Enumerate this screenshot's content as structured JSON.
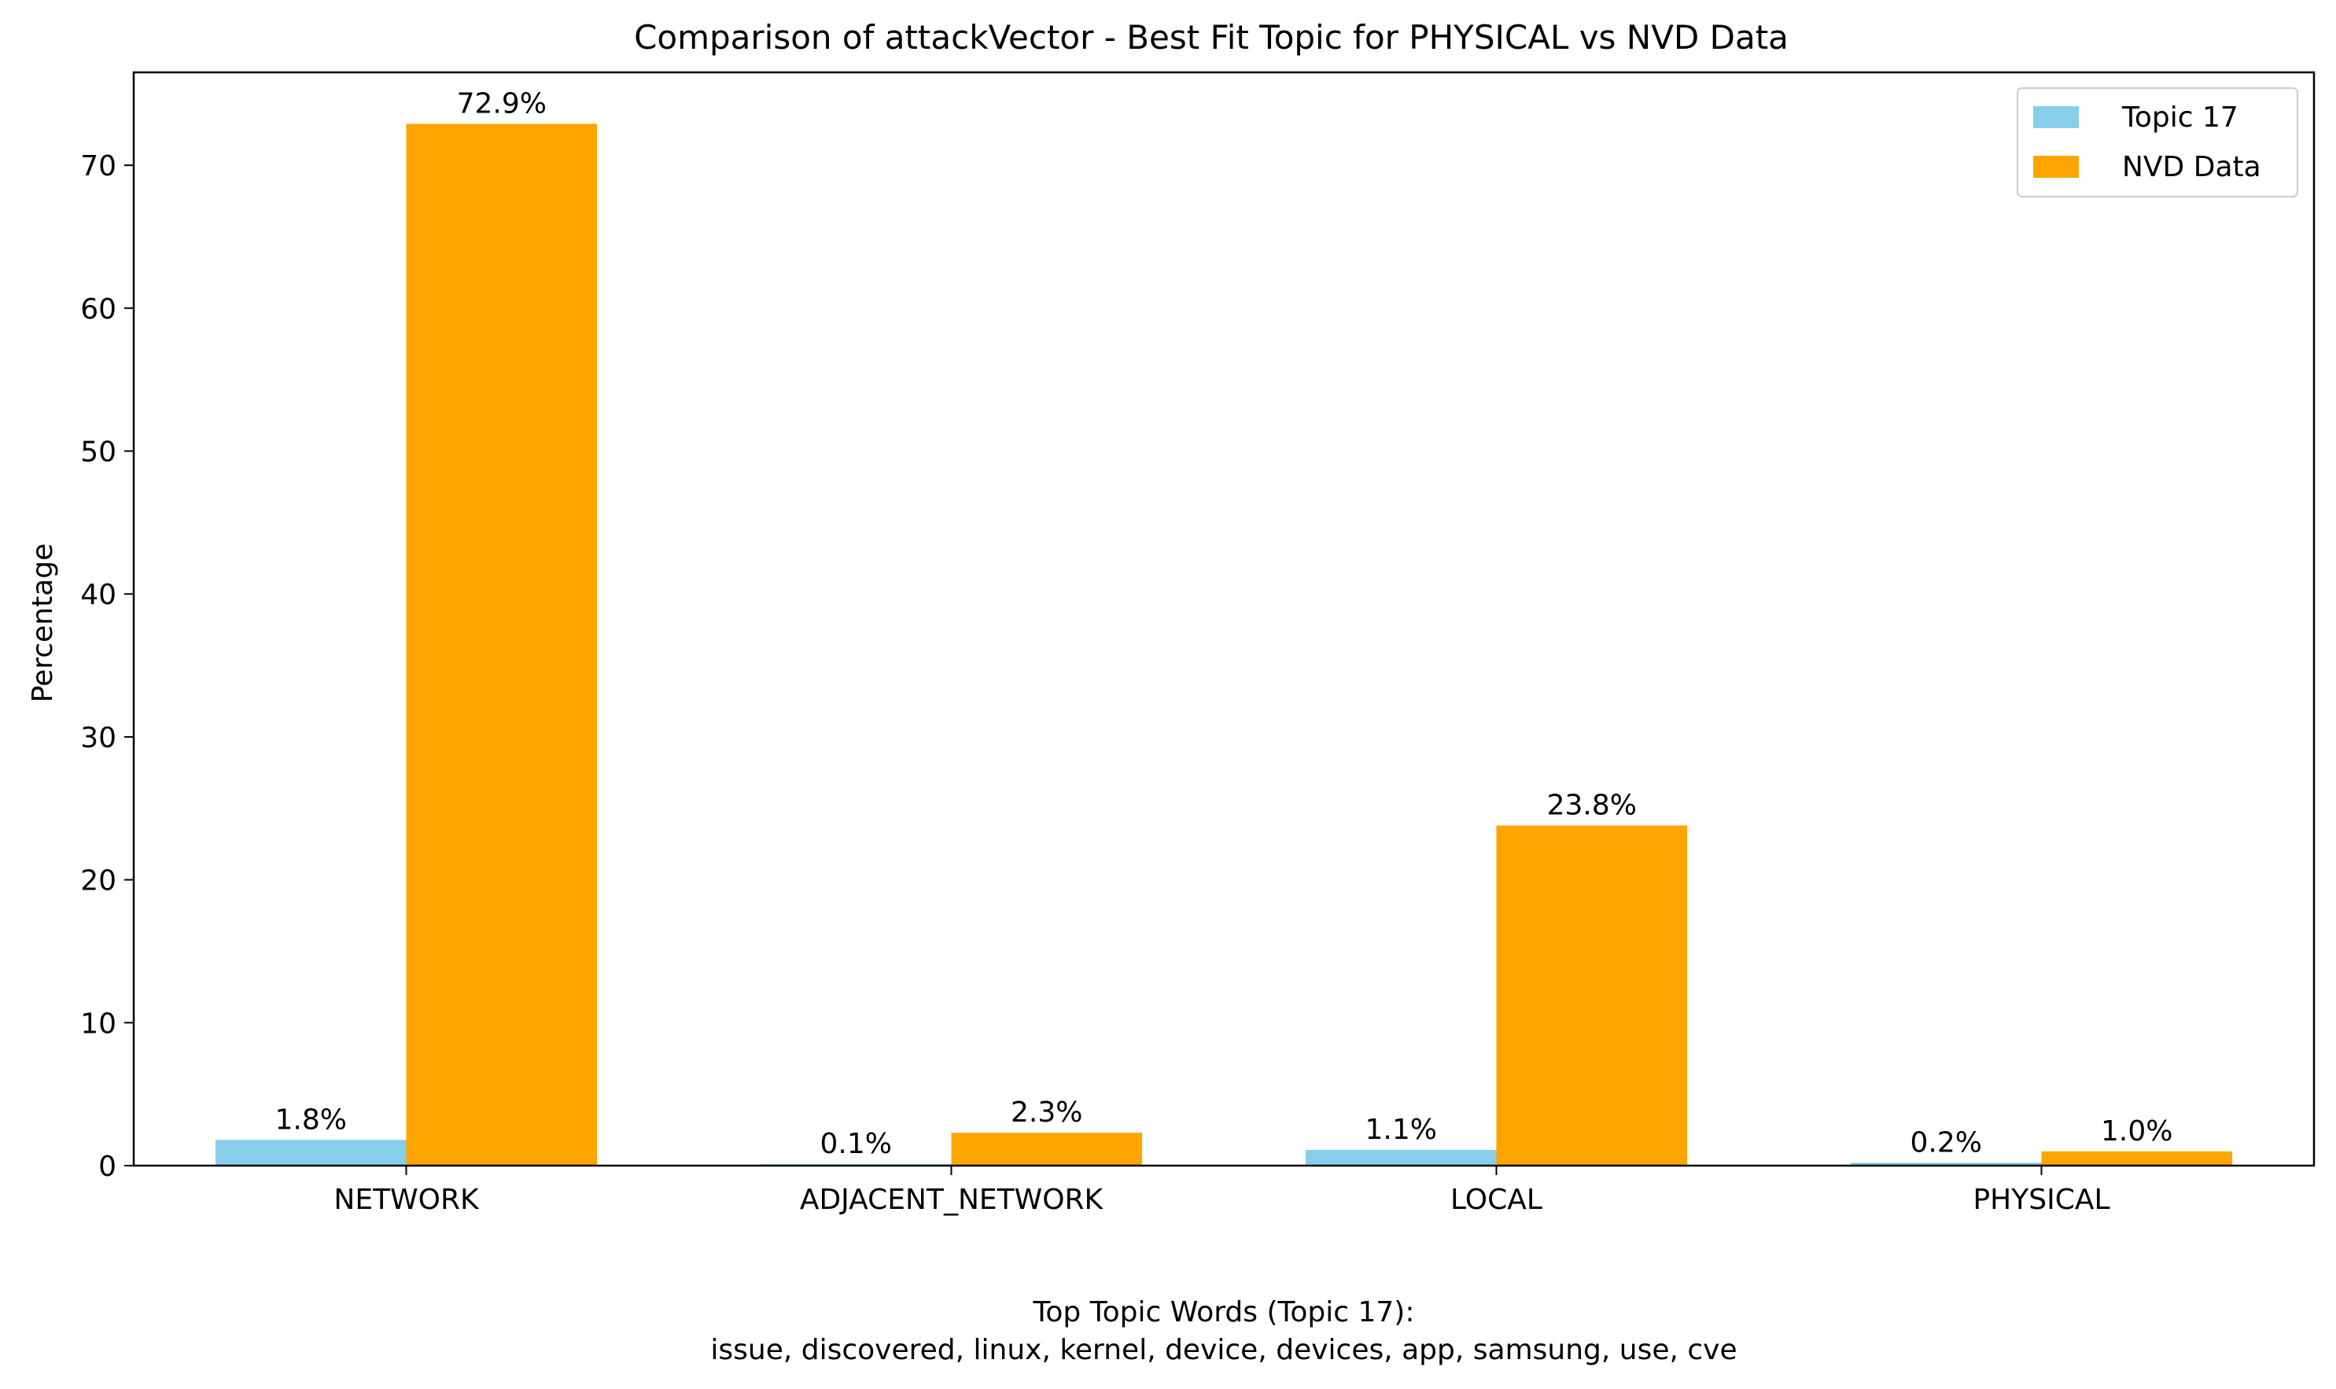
{
  "chart_data": {
    "type": "bar",
    "title": "Comparison of attackVector - Best Fit Topic for PHYSICAL vs NVD Data",
    "xlabel": "Top Topic Words (Topic 17):",
    "xlabel_words": "issue,  discovered,  linux,  kernel,  device,  devices,  app,  samsung,  use,  cve",
    "ylabel": "Percentage",
    "categories": [
      "NETWORK",
      "ADJACENT_NETWORK",
      "LOCAL",
      "PHYSICAL"
    ],
    "series": [
      {
        "name": "Topic 17",
        "color": "#87ceeb",
        "values": [
          1.8,
          0.1,
          1.1,
          0.2
        ],
        "labels": [
          "1.8%",
          "0.1%",
          "1.1%",
          "0.2%"
        ]
      },
      {
        "name": "NVD Data",
        "color": "#ffa500",
        "values": [
          72.9,
          2.3,
          23.8,
          1.0
        ],
        "labels": [
          "72.9%",
          "2.3%",
          "23.8%",
          "1.0%"
        ]
      }
    ],
    "ylim": [
      0,
      76.5
    ],
    "yticks": [
      0,
      10,
      20,
      30,
      40,
      50,
      60,
      70
    ],
    "grid": false,
    "legend_position": "top-right"
  }
}
